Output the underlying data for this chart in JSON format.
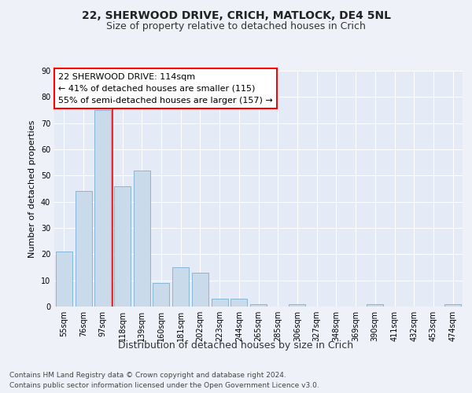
{
  "title1": "22, SHERWOOD DRIVE, CRICH, MATLOCK, DE4 5NL",
  "title2": "Size of property relative to detached houses in Crich",
  "xlabel": "Distribution of detached houses by size in Crich",
  "ylabel": "Number of detached properties",
  "categories": [
    "55sqm",
    "76sqm",
    "97sqm",
    "118sqm",
    "139sqm",
    "160sqm",
    "181sqm",
    "202sqm",
    "223sqm",
    "244sqm",
    "265sqm",
    "285sqm",
    "306sqm",
    "327sqm",
    "348sqm",
    "369sqm",
    "390sqm",
    "411sqm",
    "432sqm",
    "453sqm",
    "474sqm"
  ],
  "values": [
    21,
    44,
    75,
    46,
    52,
    9,
    15,
    13,
    3,
    3,
    1,
    0,
    1,
    0,
    0,
    0,
    1,
    0,
    0,
    0,
    1
  ],
  "bar_color": "#c9daea",
  "bar_edge_color": "#7bafd4",
  "red_line_x": 2.5,
  "annotation_title": "22 SHERWOOD DRIVE: 114sqm",
  "annotation_line1": "← 41% of detached houses are smaller (115)",
  "annotation_line2": "55% of semi-detached houses are larger (157) →",
  "footnote1": "Contains HM Land Registry data © Crown copyright and database right 2024.",
  "footnote2": "Contains public sector information licensed under the Open Government Licence v3.0.",
  "ylim": [
    0,
    90
  ],
  "yticks": [
    0,
    10,
    20,
    30,
    40,
    50,
    60,
    70,
    80,
    90
  ],
  "background_color": "#eef2f8",
  "plot_bg_color": "#e4eaf6",
  "grid_color": "#ffffff",
  "title_fontsize": 10,
  "subtitle_fontsize": 9,
  "xlabel_fontsize": 9,
  "ylabel_fontsize": 8,
  "tick_fontsize": 7,
  "annotation_fontsize": 8,
  "footnote_fontsize": 6.5
}
